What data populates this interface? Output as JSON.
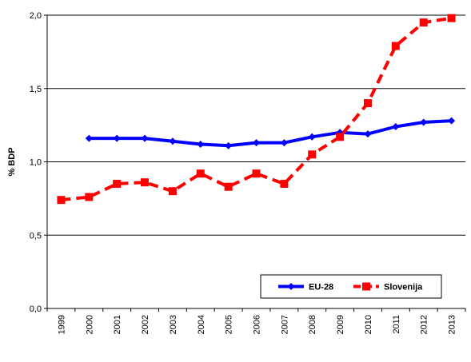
{
  "chart_data": {
    "type": "line",
    "title": "",
    "xlabel": "",
    "ylabel": "% BDP",
    "ylim": [
      0,
      2.0
    ],
    "yticks": [
      "0,0",
      "0,5",
      "1,0",
      "1,5",
      "2,0"
    ],
    "ytick_values": [
      0,
      0.5,
      1.0,
      1.5,
      2.0
    ],
    "categories": [
      "1999",
      "2000",
      "2001",
      "2002",
      "2003",
      "2004",
      "2005",
      "2006",
      "2007",
      "2008",
      "2009",
      "2010",
      "2011",
      "2012",
      "2013"
    ],
    "grid": true,
    "legend_position": "bottom-right",
    "series": [
      {
        "name": "EU-28",
        "color": "#0000FF",
        "line_style": "solid",
        "marker": "diamond",
        "values": [
          null,
          1.16,
          1.16,
          1.16,
          1.14,
          1.12,
          1.11,
          1.13,
          1.13,
          1.17,
          1.2,
          1.19,
          1.24,
          1.27,
          1.28
        ]
      },
      {
        "name": "Slovenija",
        "color": "#FF0000",
        "line_style": "dashed",
        "marker": "square",
        "values": [
          0.74,
          0.76,
          0.85,
          0.86,
          0.8,
          0.92,
          0.83,
          0.92,
          0.85,
          1.05,
          1.17,
          1.4,
          1.79,
          1.95,
          1.98
        ]
      }
    ]
  }
}
